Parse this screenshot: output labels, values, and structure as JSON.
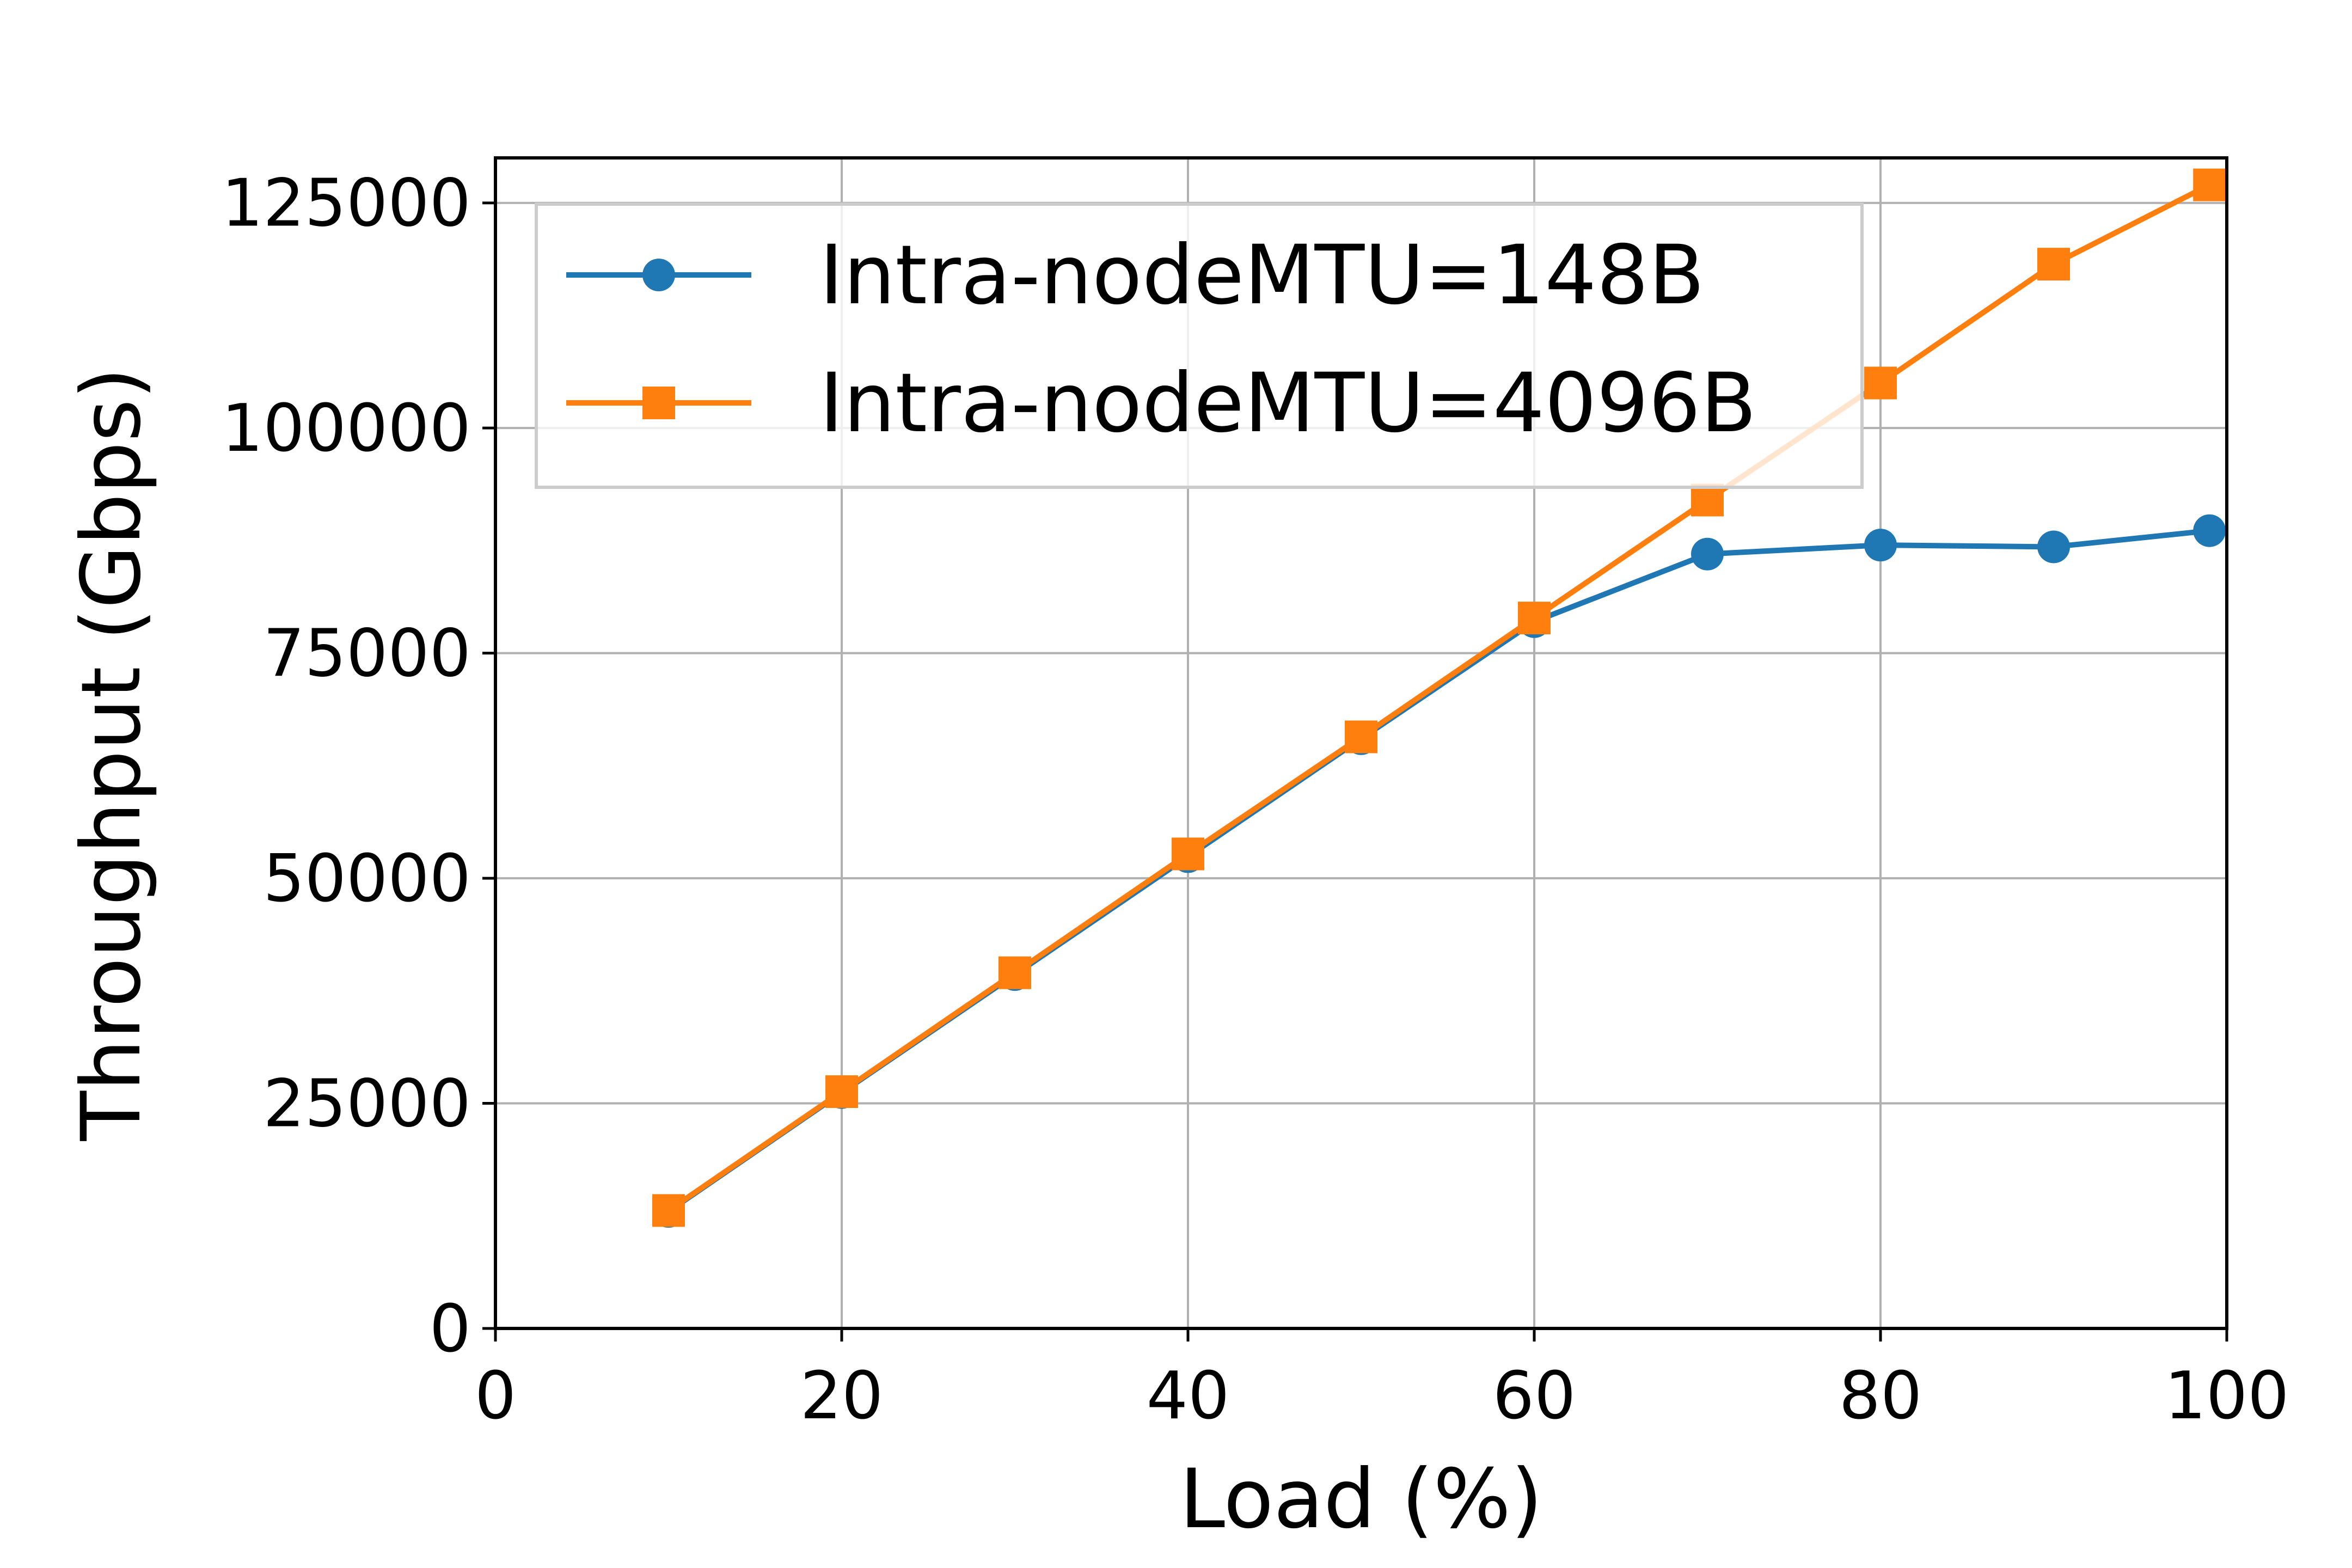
{
  "chart_data": {
    "type": "line",
    "title": "",
    "xlabel": "Load (%)",
    "ylabel": "Throughput (Gbps)",
    "xlim": [
      0,
      100
    ],
    "ylim": [
      0,
      130000
    ],
    "xticks": [
      0,
      20,
      40,
      60,
      80,
      100
    ],
    "yticks": [
      0,
      25000,
      50000,
      75000,
      100000,
      125000
    ],
    "x_tick_labels": [
      "0",
      "20",
      "40",
      "60",
      "80",
      "100"
    ],
    "y_tick_labels": [
      "0",
      "25000",
      "50000",
      "75000",
      "100000",
      "125000"
    ],
    "grid": true,
    "legend_position": "upper-left",
    "series": [
      {
        "name": "Intra-nodeMTU=148B",
        "color": "#1f77b4",
        "marker": "circle",
        "x": [
          10,
          20,
          30,
          40,
          50,
          60,
          70,
          80,
          90,
          99
        ],
        "y": [
          13000,
          26200,
          39300,
          52400,
          65500,
          78500,
          86000,
          87000,
          86800,
          88600
        ]
      },
      {
        "name": "Intra-nodeMTU=4096B",
        "color": "#ff7f0e",
        "marker": "square",
        "x": [
          10,
          20,
          30,
          40,
          50,
          60,
          70,
          80,
          90,
          99
        ],
        "y": [
          13100,
          26300,
          39500,
          52700,
          65700,
          78900,
          92000,
          105000,
          118200,
          127000
        ]
      }
    ]
  }
}
